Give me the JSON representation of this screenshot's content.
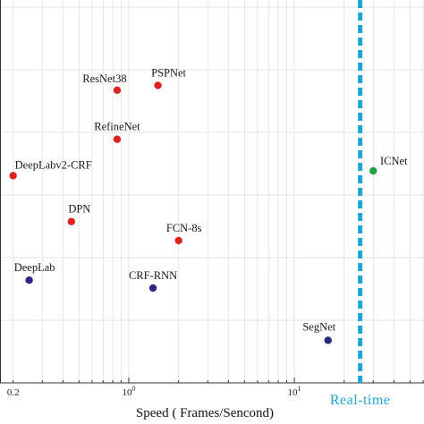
{
  "chart_data": {
    "type": "scatter",
    "x_scale": "log",
    "xlim": [
      0.2,
      100
    ],
    "xlabel": "Speed ( Frames/Sencond)",
    "x_ticks": [
      {
        "value": 0.2,
        "label": "0.2"
      },
      {
        "value": 1,
        "label": "10",
        "exponent": "0"
      },
      {
        "value": 10,
        "label": "10",
        "exponent": "1"
      }
    ],
    "grid": true,
    "points": [
      {
        "name": "ResNet38",
        "x": 0.85,
        "y": 71.0,
        "color": "#dd2222"
      },
      {
        "name": "PSPNet",
        "x": 1.5,
        "y": 71.3,
        "color": "#dd2222"
      },
      {
        "name": "RefineNet",
        "x": 0.85,
        "y": 67.9,
        "color": "#dd2222"
      },
      {
        "name": "DeepLabv2-CRF",
        "x": 0.2,
        "y": 65.6,
        "color": "#dd2222"
      },
      {
        "name": "ICNet",
        "x": 30,
        "y": 65.9,
        "color": "#22a044"
      },
      {
        "name": "DPN",
        "x": 0.45,
        "y": 62.7,
        "color": "#dd2222"
      },
      {
        "name": "FCN-8s",
        "x": 2.0,
        "y": 61.5,
        "color": "#dd2222"
      },
      {
        "name": "DeepLab",
        "x": 0.25,
        "y": 59.0,
        "color": "#2a2a80"
      },
      {
        "name": "CRF-RNN",
        "x": 1.4,
        "y": 58.5,
        "color": "#2a2a80"
      },
      {
        "name": "SegNet",
        "x": 16,
        "y": 55.2,
        "color": "#2a2a80"
      }
    ],
    "annotations": [
      {
        "type": "vline",
        "x": 25,
        "style": "dashed",
        "color": "#1ea6d4",
        "label": "Real-time"
      }
    ]
  }
}
